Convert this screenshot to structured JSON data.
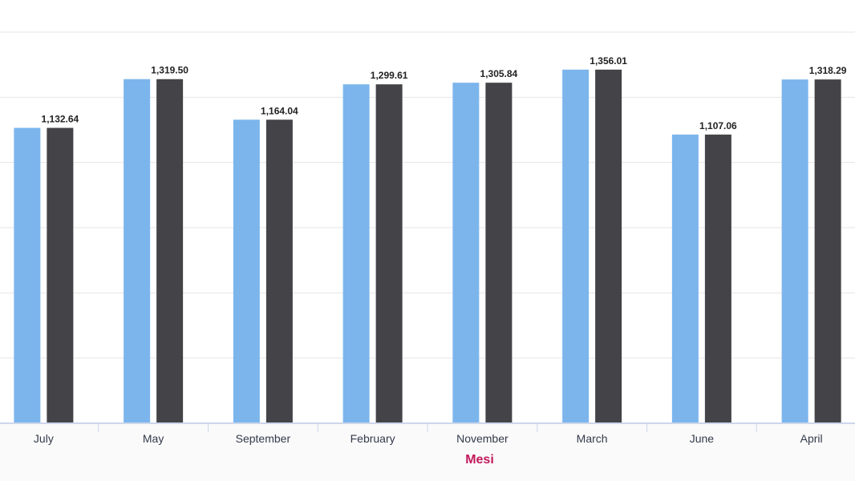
{
  "chart_data": {
    "type": "bar",
    "title": "",
    "xlabel": "Mesi",
    "ylabel": "",
    "categories": [
      "July",
      "May",
      "September",
      "February",
      "November",
      "March",
      "June",
      "April"
    ],
    "series": [
      {
        "color": "#7cb5ec",
        "values": [
          1132.64,
          1319.5,
          1164.04,
          1299.61,
          1305.84,
          1356.01,
          1107.06,
          1318.29
        ]
      },
      {
        "color": "#434348",
        "values": [
          1132.64,
          1319.5,
          1164.04,
          1299.61,
          1305.84,
          1356.01,
          1107.06,
          1318.29
        ]
      }
    ],
    "data_labels": [
      "1,132.64",
      "1,319.50",
      "1,164.04",
      "1,299.61",
      "1,305.84",
      "1,356.01",
      "1,107.06",
      "1,318.29"
    ],
    "ylim": [
      0,
      1500
    ],
    "grid": true,
    "xlabel_color": "#c2185b"
  }
}
